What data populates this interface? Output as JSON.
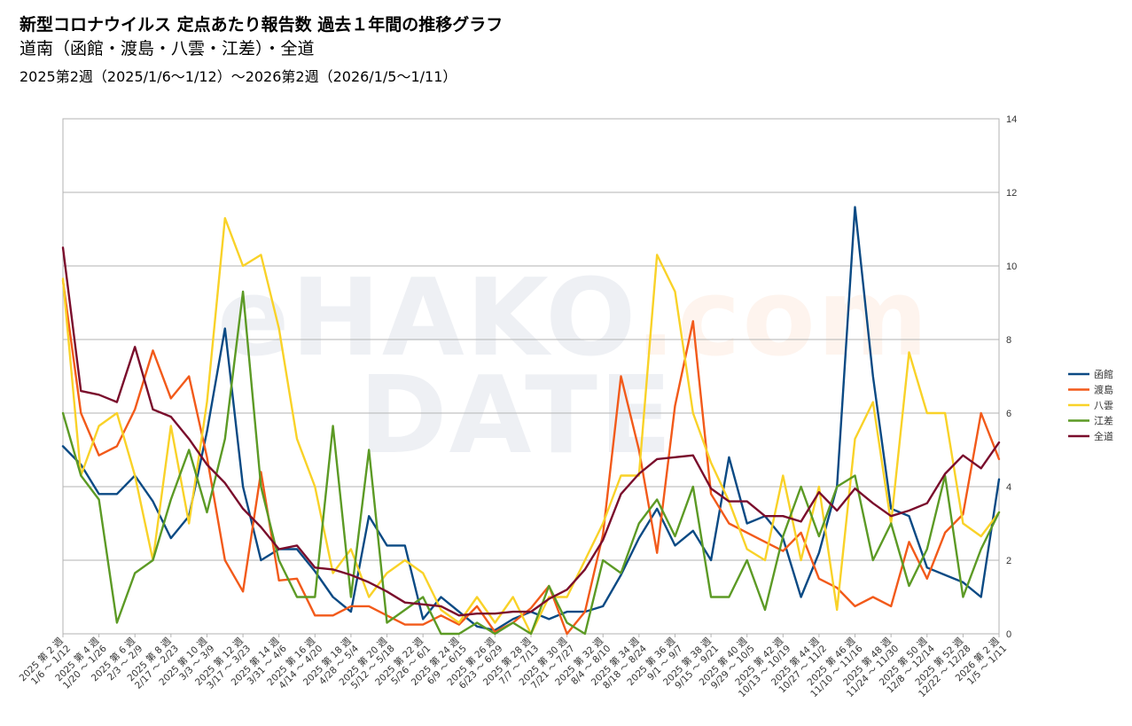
{
  "header": {
    "title": "新型コロナウイルス 定点あたり報告数 過去１年間の推移グラフ",
    "subtitle": "道南（函館・渡島・八雲・江差）・全道",
    "period": "2025第2週（2025/1/6～1/12）～2026第2週（2026/1/5～1/11）"
  },
  "watermark": {
    "part1": "eHAKO",
    "part2": ".com",
    "part3": "DATE"
  },
  "chart_data": {
    "type": "line",
    "ylim": [
      0,
      14
    ],
    "yticks": [
      0,
      2,
      4,
      6,
      8,
      10,
      12,
      14
    ],
    "y_axis_side": "right",
    "grid": true,
    "legend_placement": "right",
    "x_tick_labels": [
      [
        "2025 第 2 週",
        "1/6 ～ 1/12"
      ],
      [
        "2025 第 4 週",
        "1/20 ～ 1/26"
      ],
      [
        "2025 第 6 週",
        "2/3 ～ 2/9"
      ],
      [
        "2025 第 8 週",
        "2/17 ～ 2/23"
      ],
      [
        "2025 第 10 週",
        "3/3 ～ 3/9"
      ],
      [
        "2025 第 12 週",
        "3/17 ～ 3/23"
      ],
      [
        "2025 第 14 週",
        "3/31 ～ 4/6"
      ],
      [
        "2025 第 16 週",
        "4/14 ～ 4/20"
      ],
      [
        "2025 第 18 週",
        "4/28 ～ 5/4"
      ],
      [
        "2025 第 20 週",
        "5/12 ～ 5/18"
      ],
      [
        "2025 第 22 週",
        "5/26 ～ 6/1"
      ],
      [
        "2025 第 24 週",
        "6/9 ～ 6/15"
      ],
      [
        "2025 第 26 週",
        "6/23 ～ 6/29"
      ],
      [
        "2025 第 28 週",
        "7/7 ～ 7/13"
      ],
      [
        "2025 第 30 週",
        "7/21 ～ 7/27"
      ],
      [
        "2025 第 32 週",
        "8/4 ～ 8/10"
      ],
      [
        "2025 第 34 週",
        "8/18 ～ 8/24"
      ],
      [
        "2025 第 36 週",
        "9/1 ～ 9/7"
      ],
      [
        "2025 第 38 週",
        "9/15 ～ 9/21"
      ],
      [
        "2025 第 40 週",
        "9/29 ～ 10/5"
      ],
      [
        "2025 第 42 週",
        "10/13 ～ 10/19"
      ],
      [
        "2025 第 44 週",
        "10/27 ～ 11/2"
      ],
      [
        "2025 第 46 週",
        "11/10 ～ 11/16"
      ],
      [
        "2025 第 48 週",
        "11/24 ～ 11/30"
      ],
      [
        "2025 第 50 週",
        "12/8 ～ 12/14"
      ],
      [
        "2025 第 52 週",
        "12/22 ～ 12/28"
      ],
      [
        "2026 第 2 週",
        "1/5 ～ 1/11"
      ]
    ],
    "series": [
      {
        "name": "函館",
        "color": "#0B4A84",
        "values": [
          5.1,
          4.6,
          3.8,
          3.8,
          4.3,
          3.6,
          2.6,
          3.2,
          5.5,
          8.3,
          4.0,
          2.0,
          2.3,
          2.3,
          1.7,
          1.0,
          0.6,
          3.2,
          2.4,
          2.4,
          0.4,
          1.0,
          0.6,
          0.2,
          0.1,
          0.4,
          0.6,
          0.4,
          0.6,
          0.6,
          0.75,
          1.6,
          2.6,
          3.4,
          2.4,
          2.8,
          2.0,
          4.8,
          3.0,
          3.2,
          2.6,
          1.0,
          2.2,
          4.0,
          11.6,
          7.0,
          3.4,
          3.2,
          1.8,
          1.6,
          1.4,
          1.0,
          4.2
        ]
      },
      {
        "name": "渡島",
        "color": "#F25A1A",
        "values": [
          9.6,
          6.0,
          4.85,
          5.1,
          6.1,
          7.7,
          6.4,
          7.0,
          4.8,
          2.0,
          1.15,
          4.4,
          1.45,
          1.5,
          0.5,
          0.5,
          0.75,
          0.75,
          0.5,
          0.25,
          0.25,
          0.5,
          0.25,
          0.75,
          0.05,
          0.3,
          0.7,
          1.3,
          0.0,
          0.6,
          2.7,
          7.0,
          5.0,
          2.2,
          6.2,
          8.5,
          3.8,
          3.0,
          2.75,
          2.5,
          2.25,
          2.75,
          1.5,
          1.25,
          0.75,
          1.0,
          0.75,
          2.5,
          1.5,
          2.75,
          3.25,
          6.0,
          4.75
        ]
      },
      {
        "name": "八雲",
        "color": "#F9D228",
        "values": [
          9.65,
          4.3,
          5.65,
          6.0,
          4.3,
          2.0,
          5.65,
          3.0,
          6.3,
          11.3,
          10.0,
          10.3,
          8.3,
          5.3,
          4.0,
          1.65,
          2.3,
          1.0,
          1.65,
          2.0,
          1.65,
          0.65,
          0.3,
          1.0,
          0.3,
          1.0,
          0.0,
          1.0,
          1.0,
          2.0,
          3.0,
          4.3,
          4.3,
          10.3,
          9.3,
          6.0,
          4.65,
          3.6,
          2.3,
          2.0,
          4.3,
          2.0,
          4.0,
          0.65,
          5.3,
          6.3,
          3.0,
          7.65,
          6.0,
          6.0,
          3.0,
          2.65,
          3.3
        ]
      },
      {
        "name": "江差",
        "color": "#5C9A25",
        "values": [
          6.0,
          4.3,
          3.65,
          0.3,
          1.65,
          2.0,
          3.65,
          5.0,
          3.3,
          5.3,
          9.3,
          4.0,
          2.0,
          1.0,
          1.0,
          5.65,
          1.0,
          5.0,
          0.3,
          0.65,
          1.0,
          0.0,
          0.0,
          0.3,
          0.0,
          0.3,
          0.0,
          1.3,
          0.3,
          0.0,
          2.0,
          1.65,
          3.0,
          3.65,
          2.65,
          4.0,
          1.0,
          1.0,
          2.0,
          0.65,
          2.65,
          4.0,
          2.65,
          4.0,
          4.3,
          2.0,
          3.0,
          1.3,
          2.3,
          4.3,
          1.0,
          2.3,
          3.3
        ]
      },
      {
        "name": "全道",
        "color": "#7A0D2C",
        "values": [
          10.5,
          6.6,
          6.5,
          6.3,
          7.8,
          6.1,
          5.9,
          5.3,
          4.6,
          4.1,
          3.4,
          2.9,
          2.3,
          2.4,
          1.8,
          1.75,
          1.6,
          1.4,
          1.15,
          0.85,
          0.8,
          0.75,
          0.5,
          0.55,
          0.55,
          0.6,
          0.6,
          0.95,
          1.2,
          1.75,
          2.55,
          3.8,
          4.35,
          4.75,
          4.8,
          4.85,
          3.95,
          3.6,
          3.6,
          3.2,
          3.2,
          3.05,
          3.85,
          3.35,
          3.95,
          3.55,
          3.2,
          3.35,
          3.55,
          4.35,
          4.85,
          4.5,
          5.2
        ]
      }
    ]
  }
}
